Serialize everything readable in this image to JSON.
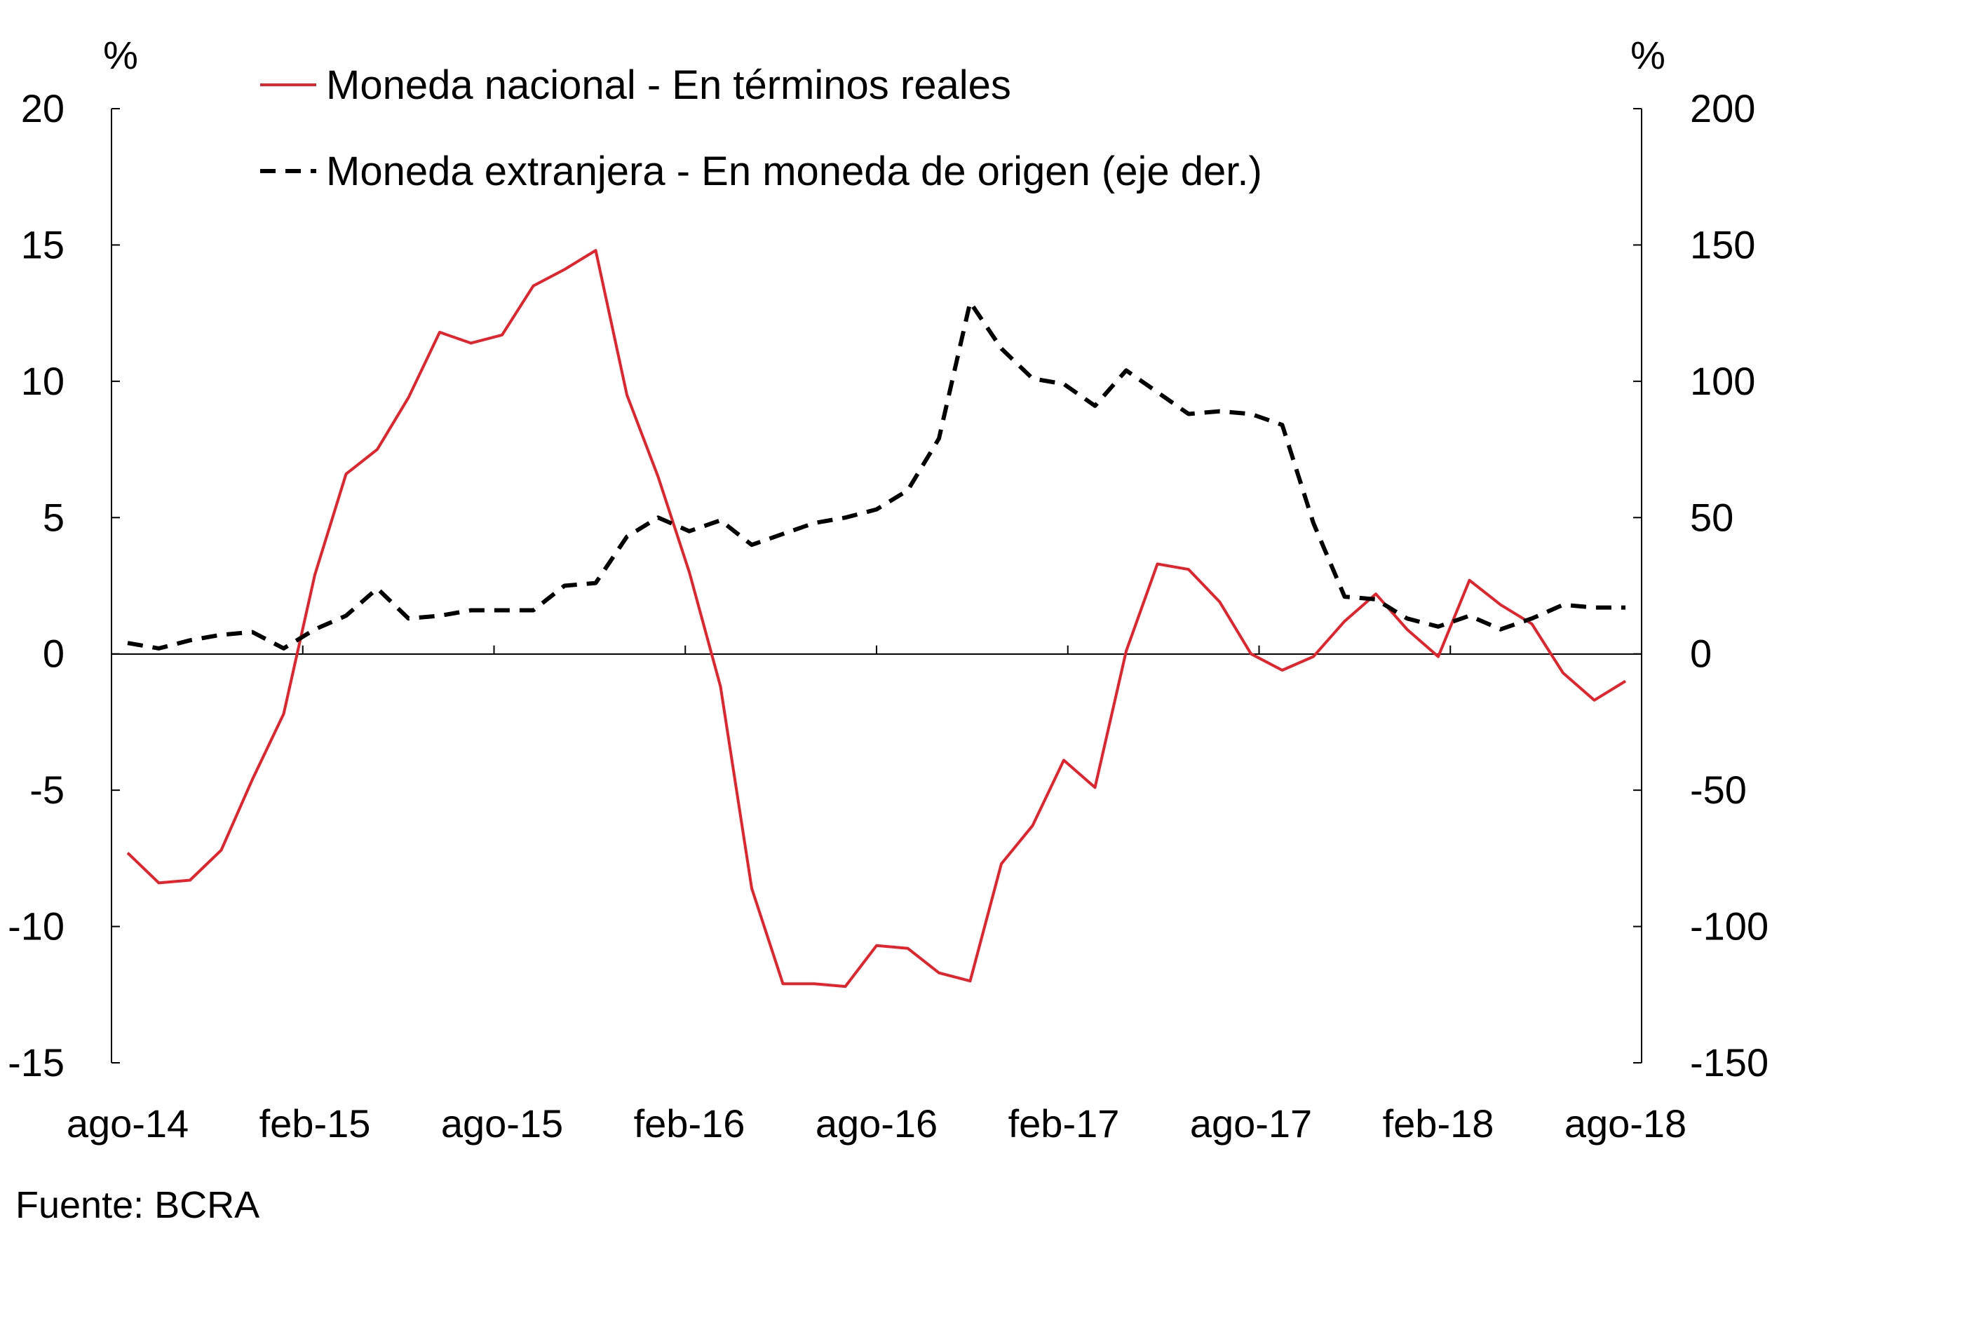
{
  "chart_data": {
    "type": "line",
    "y_unit_left": "%",
    "y_unit_right": "%",
    "ylim_left": [
      -15,
      20
    ],
    "ylim_right": [
      -150,
      200
    ],
    "yticks_left": [
      "20",
      "15",
      "10",
      "5",
      "0",
      "-5",
      "-10",
      "-15"
    ],
    "yticks_right": [
      "200",
      "150",
      "100",
      "50",
      "0",
      "-50",
      "-100",
      "-150"
    ],
    "x_tick_labels": [
      "ago-14",
      "feb-15",
      "ago-15",
      "feb-16",
      "ago-16",
      "feb-17",
      "ago-17",
      "feb-18",
      "ago-18"
    ],
    "x_months": [
      "ago-14",
      "sep-14",
      "oct-14",
      "nov-14",
      "dic-14",
      "ene-15",
      "feb-15",
      "mar-15",
      "abr-15",
      "may-15",
      "jun-15",
      "jul-15",
      "ago-15",
      "sep-15",
      "oct-15",
      "nov-15",
      "dic-15",
      "ene-16",
      "feb-16",
      "mar-16",
      "abr-16",
      "may-16",
      "jun-16",
      "jul-16",
      "ago-16",
      "sep-16",
      "oct-16",
      "nov-16",
      "dic-16",
      "ene-17",
      "feb-17",
      "mar-17",
      "abr-17",
      "may-17",
      "jun-17",
      "jul-17",
      "ago-17",
      "sep-17",
      "oct-17",
      "nov-17",
      "dic-17",
      "ene-18",
      "feb-18",
      "mar-18",
      "abr-18",
      "may-18",
      "jun-18",
      "jul-18",
      "ago-18"
    ],
    "grid": false,
    "legend_position": "top-left",
    "series": [
      {
        "name": "Moneda nacional - En términos reales",
        "axis": "left",
        "color": "#e8202a",
        "style": "solid",
        "values": [
          -7.3,
          -8.4,
          -8.3,
          -7.2,
          -4.6,
          -2.2,
          2.9,
          6.6,
          7.5,
          9.4,
          11.8,
          11.4,
          11.7,
          13.5,
          14.1,
          14.8,
          9.5,
          6.5,
          3.0,
          -1.2,
          -8.6,
          -12.1,
          -12.1,
          -12.2,
          -10.7,
          -10.8,
          -11.7,
          -12.0,
          -7.7,
          -6.3,
          -3.9,
          -4.9,
          0.1,
          3.3,
          3.1,
          1.9,
          0.0,
          -0.6,
          -0.1,
          1.2,
          2.2,
          0.9,
          -0.1,
          2.7,
          1.8,
          1.1,
          -0.7,
          -1.7,
          -1.0
        ]
      },
      {
        "name": "Moneda extranjera - En moneda de origen (eje der.)",
        "axis": "right",
        "color": "#000000",
        "style": "dashed",
        "values": [
          4,
          2,
          5,
          7,
          8,
          2,
          9,
          14,
          24,
          13,
          14,
          16,
          16,
          16,
          25,
          26,
          43,
          50,
          45,
          49,
          40,
          44,
          48,
          50,
          53,
          60,
          79,
          129,
          112,
          101,
          99,
          91,
          104,
          96,
          88,
          89,
          88,
          84,
          48,
          21,
          20,
          13,
          10,
          14,
          9,
          13,
          18,
          17,
          17
        ]
      }
    ],
    "source": "Fuente: BCRA"
  }
}
